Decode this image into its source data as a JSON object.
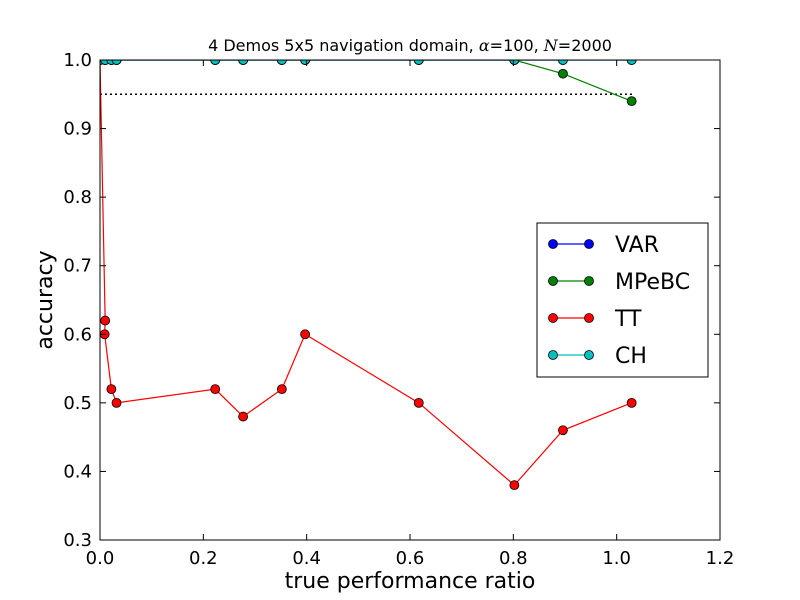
{
  "chart_data": {
    "type": "line",
    "title": {
      "prefix": "4 Demos 5x5 navigation domain, ",
      "alpha_symbol": "α",
      "alpha_value": "=100, ",
      "n_symbol": "N",
      "n_value": "=2000"
    },
    "xlabel": "true performance ratio",
    "ylabel": "accuracy",
    "xlim": [
      0.0,
      1.2
    ],
    "ylim": [
      0.3,
      1.0
    ],
    "xticks": [
      {
        "value": 0.0,
        "label": "0.0"
      },
      {
        "value": 0.2,
        "label": "0.2"
      },
      {
        "value": 0.4,
        "label": "0.4"
      },
      {
        "value": 0.6,
        "label": "0.6"
      },
      {
        "value": 0.8,
        "label": "0.8"
      },
      {
        "value": 1.0,
        "label": "1.0"
      },
      {
        "value": 1.2,
        "label": "1.2"
      }
    ],
    "yticks": [
      {
        "value": 0.3,
        "label": "0.3"
      },
      {
        "value": 0.4,
        "label": "0.4"
      },
      {
        "value": 0.5,
        "label": "0.5"
      },
      {
        "value": 0.6,
        "label": "0.6"
      },
      {
        "value": 0.7,
        "label": "0.7"
      },
      {
        "value": 0.8,
        "label": "0.8"
      },
      {
        "value": 0.9,
        "label": "0.9"
      },
      {
        "value": 1.0,
        "label": "1.0"
      }
    ],
    "reference_line": {
      "y": 0.95,
      "x_start": 0.0,
      "x_end": 1.03,
      "style": "dotted",
      "color": "#000000"
    },
    "legend_position": "center-right",
    "grid": false,
    "series": [
      {
        "name": "VAR",
        "color": "#0000ff",
        "x": [
          0.0,
          0.01,
          0.022,
          0.032,
          0.223,
          0.277,
          0.352,
          0.397,
          0.617,
          0.802,
          0.896,
          1.029
        ],
        "y": [
          1.0,
          1.0,
          1.0,
          1.0,
          1.0,
          1.0,
          1.0,
          1.0,
          1.0,
          1.0,
          1.0,
          1.0
        ]
      },
      {
        "name": "MPeBC",
        "color": "#008000",
        "x": [
          0.0,
          0.01,
          0.022,
          0.032,
          0.223,
          0.277,
          0.352,
          0.397,
          0.617,
          0.802,
          0.896,
          1.029
        ],
        "y": [
          1.0,
          1.0,
          1.0,
          1.0,
          1.0,
          1.0,
          1.0,
          1.0,
          1.0,
          1.0,
          0.98,
          0.94
        ]
      },
      {
        "name": "TT",
        "color": "#ff0000",
        "x": [
          0.0,
          0.01,
          0.009,
          0.022,
          0.032,
          0.223,
          0.277,
          0.352,
          0.397,
          0.617,
          0.802,
          0.896,
          1.029
        ],
        "y": [
          1.0,
          0.62,
          0.6,
          0.52,
          0.5,
          0.52,
          0.48,
          0.52,
          0.6,
          0.5,
          0.38,
          0.46,
          0.5
        ]
      },
      {
        "name": "CH",
        "color": "#00bfbf",
        "x": [
          0.0,
          0.01,
          0.022,
          0.032,
          0.223,
          0.277,
          0.352,
          0.397,
          0.617,
          0.802,
          0.896,
          1.029
        ],
        "y": [
          1.0,
          1.0,
          1.0,
          1.0,
          1.0,
          1.0,
          1.0,
          1.0,
          1.0,
          1.0,
          1.0,
          1.0
        ]
      }
    ]
  }
}
